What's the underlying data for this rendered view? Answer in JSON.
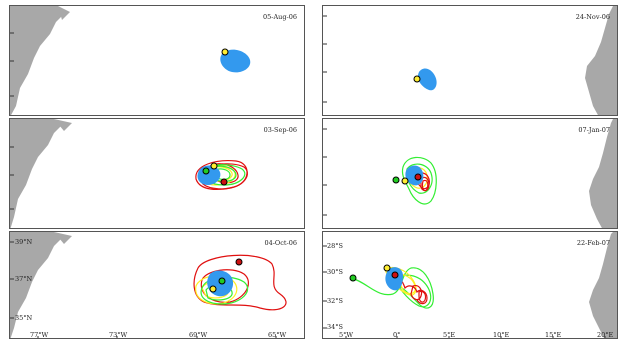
{
  "panels": [
    {
      "date": "05-Aug-06"
    },
    {
      "date": "24-Nov-06"
    },
    {
      "date": "03-Sep-06"
    },
    {
      "date": "07-Jan-07"
    },
    {
      "date": "04-Oct-06"
    },
    {
      "date": "22-Feb-07"
    }
  ],
  "left_axis": {
    "lat_labels": [
      "39°N",
      "37°N",
      "35°N"
    ],
    "lon_labels": [
      "77°W",
      "73°W",
      "69°W",
      "65°W"
    ]
  },
  "right_axis": {
    "lat_labels": [
      "28°S",
      "30°S",
      "32°S",
      "34°S"
    ],
    "lon_labels": [
      "5°W",
      "0°",
      "5°E",
      "10°E",
      "15°E",
      "20°E"
    ]
  },
  "colors": {
    "land": "#a8a8a8",
    "eddy": "#3399ee",
    "track_red": "#e01010",
    "track_green": "#33ee33",
    "track_yellow": "#ffee22",
    "marker_red": "#cc1111",
    "marker_green": "#22cc22",
    "marker_yellow": "#ffee33"
  }
}
